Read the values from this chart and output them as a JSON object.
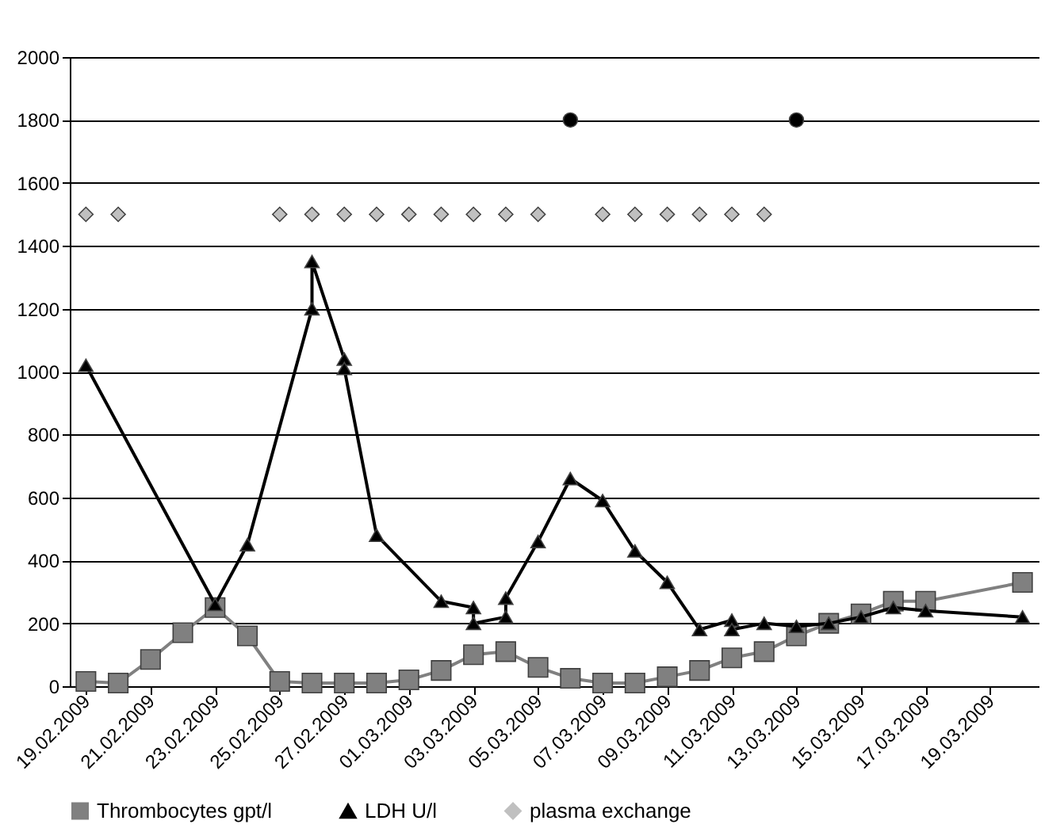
{
  "chart_data": {
    "type": "line",
    "xlim": [
      "2009-02-18T12:00",
      "2009-03-20T12:00"
    ],
    "xticks": [
      {
        "value": "2009-02-19",
        "label": "19.02.2009"
      },
      {
        "value": "2009-02-21",
        "label": "21.02.2009"
      },
      {
        "value": "2009-02-23",
        "label": "23.02.2009"
      },
      {
        "value": "2009-02-25",
        "label": "25.02.2009"
      },
      {
        "value": "2009-02-27",
        "label": "27.02.2009"
      },
      {
        "value": "2009-03-01",
        "label": "01.03.2009"
      },
      {
        "value": "2009-03-03",
        "label": "03.03.2009"
      },
      {
        "value": "2009-03-05",
        "label": "05.03.2009"
      },
      {
        "value": "2009-03-07",
        "label": "07.03.2009"
      },
      {
        "value": "2009-03-09",
        "label": "09.03.2009"
      },
      {
        "value": "2009-03-11",
        "label": "11.03.2009"
      },
      {
        "value": "2009-03-13",
        "label": "13.03.2009"
      },
      {
        "value": "2009-03-15",
        "label": "15.03.2009"
      },
      {
        "value": "2009-03-17",
        "label": "17.03.2009"
      },
      {
        "value": "2009-03-19",
        "label": "19.03.2009"
      }
    ],
    "ylim": [
      0,
      2000
    ],
    "yticks": [
      0,
      200,
      400,
      600,
      800,
      1000,
      1200,
      1400,
      1600,
      1800,
      2000
    ],
    "grid": "y",
    "legend": "bottom",
    "series": [
      {
        "name": "Thrombocytes gpt/l",
        "marker": "square",
        "color": "#808080",
        "x": [
          "2009-02-19",
          "2009-02-20",
          "2009-02-21",
          "2009-02-22",
          "2009-02-23",
          "2009-02-24",
          "2009-02-25",
          "2009-02-26",
          "2009-02-27",
          "2009-02-28",
          "2009-03-01",
          "2009-03-02",
          "2009-03-03",
          "2009-03-04",
          "2009-03-05",
          "2009-03-06",
          "2009-03-07",
          "2009-03-08",
          "2009-03-09",
          "2009-03-10",
          "2009-03-11",
          "2009-03-12",
          "2009-03-13",
          "2009-03-14",
          "2009-03-15",
          "2009-03-16",
          "2009-03-17",
          "2009-03-20"
        ],
        "values": [
          15,
          10,
          85,
          170,
          250,
          160,
          15,
          10,
          10,
          10,
          20,
          50,
          100,
          110,
          60,
          25,
          10,
          10,
          30,
          50,
          90,
          110,
          160,
          200,
          230,
          270,
          270,
          330
        ]
      },
      {
        "name": "LDH U/l",
        "marker": "triangle",
        "color": "#000000",
        "x": [
          "2009-02-19",
          "2009-02-23",
          "2009-02-24",
          "2009-02-26",
          "2009-02-26",
          "2009-02-27",
          "2009-02-27",
          "2009-02-28",
          "2009-03-02",
          "2009-03-03",
          "2009-03-03",
          "2009-03-04",
          "2009-03-04",
          "2009-03-05",
          "2009-03-06",
          "2009-03-07",
          "2009-03-08",
          "2009-03-09",
          "2009-03-10",
          "2009-03-11",
          "2009-03-11",
          "2009-03-12",
          "2009-03-13",
          "2009-03-14",
          "2009-03-15",
          "2009-03-16",
          "2009-03-17",
          "2009-03-20"
        ],
        "values": [
          1020,
          260,
          450,
          1200,
          1350,
          1040,
          1010,
          480,
          270,
          250,
          200,
          220,
          280,
          460,
          660,
          590,
          430,
          330,
          180,
          210,
          180,
          200,
          190,
          200,
          220,
          250,
          240,
          220
        ]
      },
      {
        "name": "plasma exchange",
        "type": "scatter",
        "marker": "diamond",
        "color": "#c0c0c0",
        "x": [
          "2009-02-19",
          "2009-02-20",
          "2009-02-25",
          "2009-02-26",
          "2009-02-27",
          "2009-02-28",
          "2009-03-01",
          "2009-03-02",
          "2009-03-03",
          "2009-03-04",
          "2009-03-05",
          "2009-03-07",
          "2009-03-08",
          "2009-03-09",
          "2009-03-10",
          "2009-03-11",
          "2009-03-12"
        ],
        "values": [
          1500,
          1500,
          1500,
          1500,
          1500,
          1500,
          1500,
          1500,
          1500,
          1500,
          1500,
          1500,
          1500,
          1500,
          1500,
          1500,
          1500
        ]
      },
      {
        "type": "scatter",
        "marker": "circle",
        "color": "#000000",
        "x": [
          "2009-03-06",
          "2009-03-13"
        ],
        "values": [
          1800,
          1800
        ]
      }
    ]
  }
}
